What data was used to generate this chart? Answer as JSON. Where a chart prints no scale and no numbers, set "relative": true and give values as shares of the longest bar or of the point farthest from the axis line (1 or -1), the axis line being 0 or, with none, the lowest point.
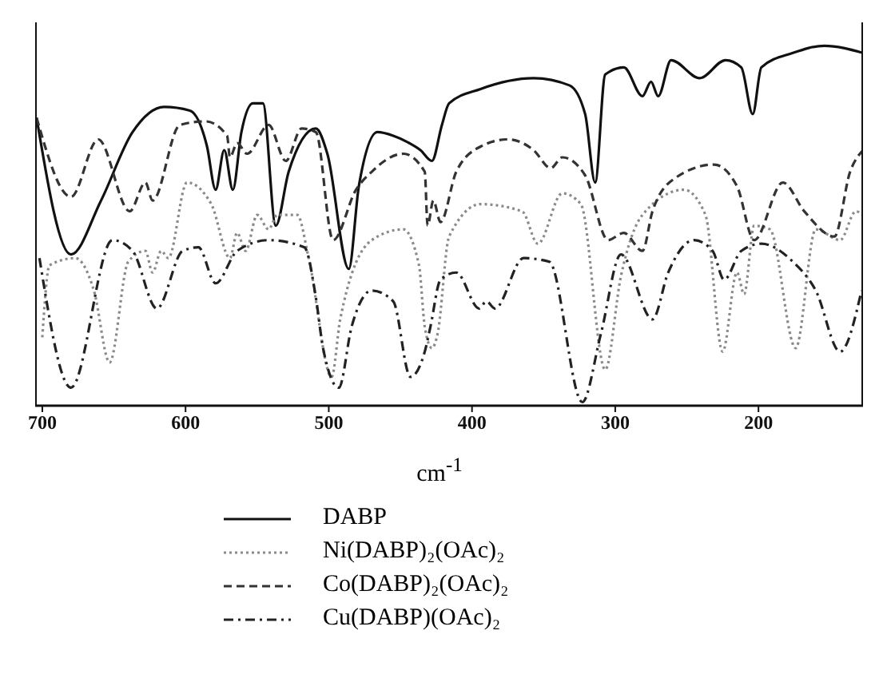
{
  "chart_data": {
    "type": "line",
    "relative": true,
    "xlabel": "cm$^{-1}$",
    "xlim": [
      705,
      127
    ],
    "xticks": [
      700,
      600,
      500,
      400,
      300,
      200
    ],
    "tick_labels": "x",
    "legend": "bottom",
    "marker": "none",
    "series": [
      {
        "name": "DABP",
        "color": "#111111",
        "line_style": "solid",
        "x": [
          704,
          680,
          659,
          637,
          615,
          597,
          585,
          579,
          573,
          567,
          561,
          553,
          546,
          537,
          528,
          509,
          501,
          486,
          479,
          466,
          455,
          444,
          436,
          428,
          421,
          416,
          394,
          357,
          332,
          321,
          314,
          307,
          294,
          281,
          275,
          270,
          261,
          241,
          223,
          212,
          204,
          198,
          176,
          154,
          127
        ],
        "values": [
          0.8,
          0.42,
          0.57,
          0.76,
          0.83,
          0.82,
          0.72,
          0.6,
          0.71,
          0.6,
          0.76,
          0.84,
          0.84,
          0.5,
          0.65,
          0.77,
          0.7,
          0.38,
          0.61,
          0.76,
          0.75,
          0.73,
          0.71,
          0.68,
          0.78,
          0.84,
          0.88,
          0.91,
          0.89,
          0.81,
          0.62,
          0.92,
          0.94,
          0.86,
          0.9,
          0.86,
          0.96,
          0.91,
          0.96,
          0.94,
          0.81,
          0.94,
          0.98,
          1.0,
          0.98
        ]
      },
      {
        "name": "Ni(DABP)₂(OAc)₂",
        "color": "#8a8a8a",
        "line_style": "dotted",
        "x": [
          700,
          695,
          677,
          664,
          653,
          640,
          628,
          623,
          617,
          612,
          599,
          582,
          569,
          564,
          558,
          550,
          542,
          536,
          522,
          514,
          498,
          492,
          470,
          448,
          437,
          433,
          428,
          424,
          416,
          394,
          365,
          354,
          337,
          324,
          307,
          296,
          281,
          252,
          237,
          225,
          215,
          210,
          203,
          192,
          174,
          160,
          143,
          132,
          127
        ],
        "values": [
          0.19,
          0.39,
          0.41,
          0.32,
          0.12,
          0.4,
          0.43,
          0.37,
          0.43,
          0.41,
          0.62,
          0.56,
          0.41,
          0.48,
          0.43,
          0.53,
          0.49,
          0.53,
          0.53,
          0.41,
          0.08,
          0.24,
          0.46,
          0.49,
          0.39,
          0.22,
          0.16,
          0.2,
          0.47,
          0.56,
          0.54,
          0.45,
          0.59,
          0.56,
          0.1,
          0.36,
          0.53,
          0.6,
          0.53,
          0.15,
          0.37,
          0.31,
          0.5,
          0.49,
          0.16,
          0.49,
          0.46,
          0.54,
          0.53
        ]
      },
      {
        "name": "Co(DABP)₂(OAc)₂",
        "color": "#333333",
        "line_style": "dashed",
        "x": [
          704,
          680,
          661,
          639,
          628,
          623,
          604,
          586,
          571,
          569,
          564,
          557,
          542,
          530,
          519,
          509,
          497,
          481,
          470,
          448,
          433,
          431,
          427,
          422,
          411,
          394,
          375,
          357,
          345,
          337,
          321,
          305,
          294,
          281,
          274,
          259,
          231,
          215,
          203,
          183,
          168,
          147,
          136,
          127
        ],
        "values": [
          0.8,
          0.58,
          0.74,
          0.54,
          0.62,
          0.57,
          0.78,
          0.79,
          0.75,
          0.69,
          0.73,
          0.7,
          0.78,
          0.68,
          0.77,
          0.76,
          0.46,
          0.6,
          0.65,
          0.7,
          0.65,
          0.5,
          0.57,
          0.51,
          0.65,
          0.72,
          0.74,
          0.71,
          0.66,
          0.69,
          0.64,
          0.46,
          0.48,
          0.43,
          0.54,
          0.63,
          0.67,
          0.61,
          0.46,
          0.62,
          0.54,
          0.47,
          0.65,
          0.71
        ]
      },
      {
        "name": "Cu(DABP)(OAc)₂",
        "color": "#222222",
        "line_style": "dashdot",
        "x": [
          702,
          680,
          651,
          637,
          620,
          602,
          591,
          579,
          564,
          542,
          517,
          509,
          504,
          493,
          484,
          470,
          455,
          443,
          433,
          429,
          422,
          411,
          395,
          390,
          384,
          364,
          346,
          323,
          310,
          296,
          274,
          263,
          245,
          232,
          224,
          212,
          198,
          176,
          160,
          143,
          128
        ],
        "values": [
          0.41,
          0.05,
          0.46,
          0.43,
          0.27,
          0.43,
          0.44,
          0.34,
          0.43,
          0.46,
          0.44,
          0.3,
          0.16,
          0.05,
          0.22,
          0.32,
          0.29,
          0.08,
          0.15,
          0.22,
          0.35,
          0.37,
          0.27,
          0.29,
          0.27,
          0.41,
          0.4,
          0.01,
          0.2,
          0.42,
          0.24,
          0.37,
          0.46,
          0.43,
          0.35,
          0.43,
          0.45,
          0.4,
          0.32,
          0.15,
          0.32
        ]
      }
    ]
  }
}
